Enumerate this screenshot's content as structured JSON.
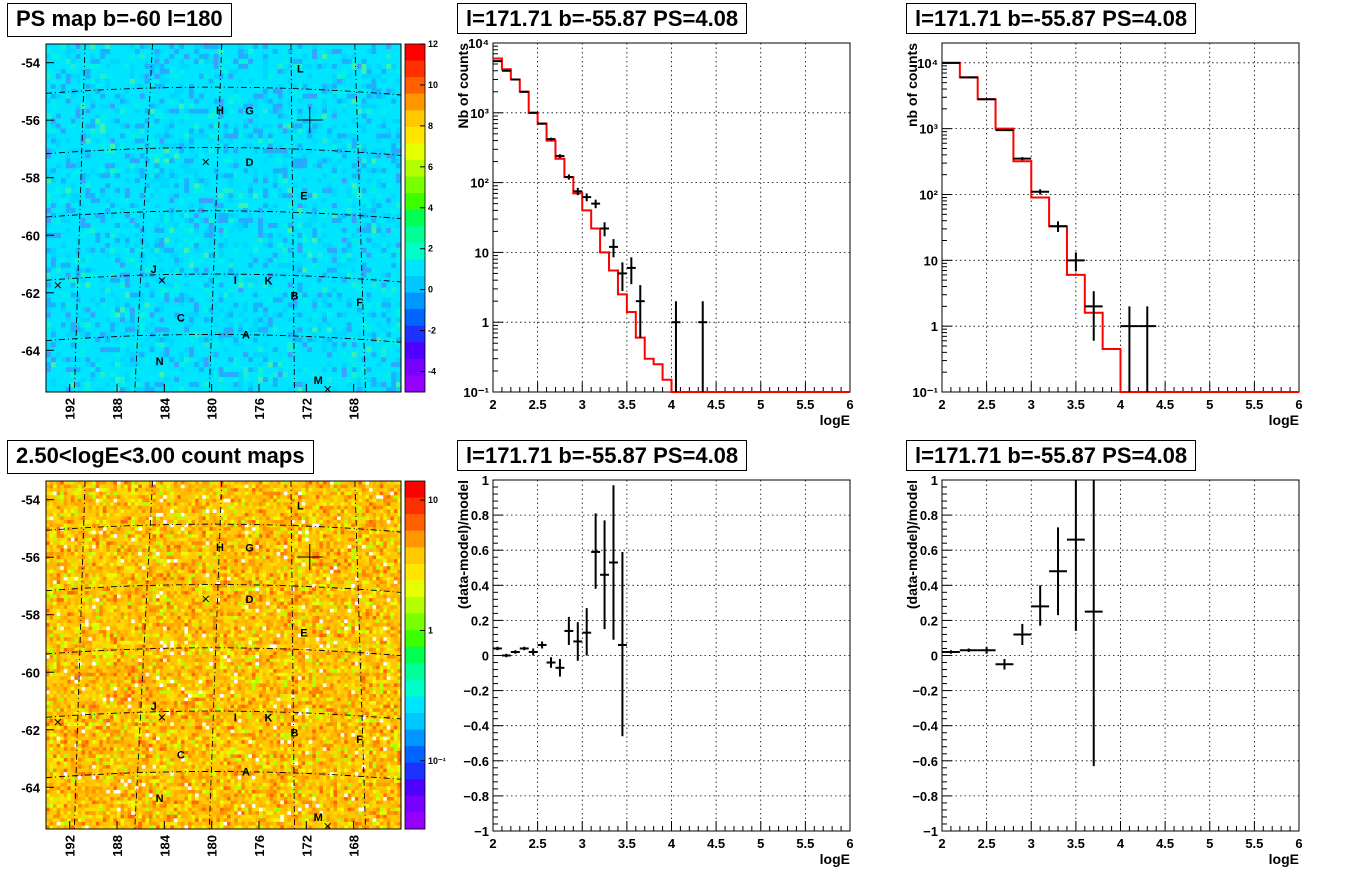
{
  "colors": {
    "data_marker": "#000000",
    "model_line": "#ff0000",
    "grid": "#000000",
    "frame": "#000000",
    "background": "#ffffff"
  },
  "maps": [
    {
      "title": "PS map b=-60 l=180",
      "yticks": [
        "-54",
        "-56",
        "-58",
        "-60",
        "-62",
        "-64"
      ],
      "xticks": [
        "192",
        "188",
        "184",
        "180",
        "176",
        "172",
        "168"
      ],
      "colorbar": {
        "labels": [
          "12",
          "10",
          "8",
          "6",
          "4",
          "2",
          "0",
          "-2",
          "-4"
        ],
        "scale": "linear",
        "range": [
          -5,
          12
        ]
      },
      "dominant_color": "cyan",
      "sources": [
        {
          "name": "L",
          "lon": 172.5,
          "lat": -54.1
        },
        {
          "name": "H",
          "lon": 179.3,
          "lat": -55.6
        },
        {
          "name": "G",
          "lon": 176.8,
          "lat": -55.6
        },
        {
          "name": "D",
          "lon": 176.8,
          "lat": -57.4
        },
        {
          "name": "E",
          "lon": 172.2,
          "lat": -58.5
        },
        {
          "name": "J",
          "lon": 184.9,
          "lat": -61.1
        },
        {
          "name": "I",
          "lon": 178.0,
          "lat": -61.5
        },
        {
          "name": "K",
          "lon": 175.2,
          "lat": -61.5
        },
        {
          "name": "B",
          "lon": 173.0,
          "lat": -62.0
        },
        {
          "name": "F",
          "lon": 167.5,
          "lat": -62.1
        },
        {
          "name": "C",
          "lon": 182.6,
          "lat": -62.8
        },
        {
          "name": "A",
          "lon": 177.1,
          "lat": -63.4
        },
        {
          "name": "N",
          "lon": 184.4,
          "lat": -64.3
        },
        {
          "name": "M",
          "lon": 171.0,
          "lat": -64.9
        }
      ]
    },
    {
      "title": "2.50<logE<3.00 count maps",
      "yticks": [
        "-54",
        "-56",
        "-58",
        "-60",
        "-62",
        "-64"
      ],
      "xticks": [
        "192",
        "188",
        "184",
        "180",
        "176",
        "172",
        "168"
      ],
      "colorbar": {
        "labels": [
          "10",
          "1",
          "10⁻¹"
        ],
        "scale": "log",
        "range": [
          0.03,
          14
        ]
      },
      "dominant_color": "orange-yellow",
      "sources": [
        {
          "name": "L",
          "lon": 172.5,
          "lat": -54.1
        },
        {
          "name": "H",
          "lon": 179.3,
          "lat": -55.6
        },
        {
          "name": "G",
          "lon": 176.8,
          "lat": -55.6
        },
        {
          "name": "D",
          "lon": 176.8,
          "lat": -57.4
        },
        {
          "name": "E",
          "lon": 172.2,
          "lat": -58.5
        },
        {
          "name": "J",
          "lon": 184.9,
          "lat": -61.1
        },
        {
          "name": "I",
          "lon": 178.0,
          "lat": -61.5
        },
        {
          "name": "K",
          "lon": 175.2,
          "lat": -61.5
        },
        {
          "name": "B",
          "lon": 173.0,
          "lat": -62.0
        },
        {
          "name": "F",
          "lon": 167.5,
          "lat": -62.1
        },
        {
          "name": "C",
          "lon": 182.6,
          "lat": -62.8
        },
        {
          "name": "A",
          "lon": 177.1,
          "lat": -63.4
        },
        {
          "name": "N",
          "lon": 184.4,
          "lat": -64.3
        },
        {
          "name": "M",
          "lon": 171.0,
          "lat": -64.9
        }
      ]
    }
  ],
  "chart_data": [
    {
      "type": "line",
      "title": "l=171.71 b=-55.87 PS=4.08",
      "xlabel": "logE",
      "ylabel": "Nb of counts",
      "yscale": "log",
      "xlim": [
        2,
        6
      ],
      "ylim": [
        0.1,
        10000
      ],
      "grid": true,
      "xticks": [
        "2",
        "2.5",
        "3",
        "3.5",
        "4",
        "4.5",
        "5",
        "5.5",
        "6"
      ],
      "yticks": [
        {
          "v": 0.1,
          "t": "10⁻¹"
        },
        {
          "v": 1,
          "t": "1"
        },
        {
          "v": 10,
          "t": "10"
        },
        {
          "v": 100,
          "t": "10²"
        },
        {
          "v": 1000,
          "t": "10³"
        },
        {
          "v": 10000,
          "t": "10⁴"
        }
      ],
      "model_step": {
        "edges": [
          2.0,
          2.1,
          2.2,
          2.3,
          2.4,
          2.5,
          2.6,
          2.7,
          2.8,
          2.9,
          3.0,
          3.1,
          3.2,
          3.3,
          3.4,
          3.5,
          3.6,
          3.7,
          3.8,
          3.9,
          4.0,
          4.1,
          6.0
        ],
        "values": [
          6000,
          4200,
          3000,
          2000,
          1000,
          700,
          400,
          220,
          120,
          70,
          40,
          22,
          10,
          5.5,
          2.5,
          1.4,
          0.6,
          0.3,
          0.25,
          0.15,
          0.1,
          0.1
        ]
      },
      "data_points": [
        {
          "x": 2.05,
          "y": 5500,
          "xerr": 0.05,
          "ylo": 5400,
          "yhi": 5600
        },
        {
          "x": 2.15,
          "y": 4000,
          "xerr": 0.05,
          "ylo": 3900,
          "yhi": 4100
        },
        {
          "x": 2.25,
          "y": 3000,
          "xerr": 0.05,
          "ylo": 2900,
          "yhi": 3100
        },
        {
          "x": 2.35,
          "y": 2000,
          "xerr": 0.05,
          "ylo": 1950,
          "yhi": 2050
        },
        {
          "x": 2.45,
          "y": 1000,
          "xerr": 0.05,
          "ylo": 970,
          "yhi": 1030
        },
        {
          "x": 2.55,
          "y": 700,
          "xerr": 0.05,
          "ylo": 675,
          "yhi": 725
        },
        {
          "x": 2.65,
          "y": 420,
          "xerr": 0.05,
          "ylo": 400,
          "yhi": 440
        },
        {
          "x": 2.75,
          "y": 240,
          "xerr": 0.05,
          "ylo": 225,
          "yhi": 255
        },
        {
          "x": 2.85,
          "y": 120,
          "xerr": 0.05,
          "ylo": 110,
          "yhi": 131
        },
        {
          "x": 2.95,
          "y": 75,
          "xerr": 0.05,
          "ylo": 66,
          "yhi": 84
        },
        {
          "x": 3.05,
          "y": 62,
          "xerr": 0.05,
          "ylo": 54,
          "yhi": 70
        },
        {
          "x": 3.15,
          "y": 50,
          "xerr": 0.05,
          "ylo": 43,
          "yhi": 57
        },
        {
          "x": 3.25,
          "y": 22,
          "xerr": 0.05,
          "ylo": 17,
          "yhi": 27
        },
        {
          "x": 3.35,
          "y": 12,
          "xerr": 0.05,
          "ylo": 8.5,
          "yhi": 15.5
        },
        {
          "x": 3.45,
          "y": 5,
          "xerr": 0.05,
          "ylo": 2.8,
          "yhi": 7.2
        },
        {
          "x": 3.55,
          "y": 6,
          "xerr": 0.05,
          "ylo": 3.5,
          "yhi": 8.5
        },
        {
          "x": 3.65,
          "y": 2,
          "xerr": 0.05,
          "ylo": 0.6,
          "yhi": 3.4
        },
        {
          "x": 4.05,
          "y": 1,
          "xerr": 0.05,
          "ylo": 0.1,
          "yhi": 2
        },
        {
          "x": 4.35,
          "y": 1,
          "xerr": 0.05,
          "ylo": 0.1,
          "yhi": 2
        }
      ]
    },
    {
      "type": "line",
      "title": "l=171.71 b=-55.87 PS=4.08",
      "xlabel": "logE",
      "ylabel": "nb of counts",
      "yscale": "log",
      "xlim": [
        2,
        6
      ],
      "ylim": [
        0.1,
        20000
      ],
      "grid": true,
      "xticks": [
        "2",
        "2.5",
        "3",
        "3.5",
        "4",
        "4.5",
        "5",
        "5.5",
        "6"
      ],
      "yticks": [
        {
          "v": 0.1,
          "t": "10⁻¹"
        },
        {
          "v": 1,
          "t": "1"
        },
        {
          "v": 10,
          "t": "10"
        },
        {
          "v": 100,
          "t": "10²"
        },
        {
          "v": 1000,
          "t": "10³"
        },
        {
          "v": 10000,
          "t": "10⁴"
        }
      ],
      "model_step": {
        "edges": [
          2.0,
          2.2,
          2.4,
          2.6,
          2.8,
          3.0,
          3.2,
          3.4,
          3.6,
          3.8,
          4.0,
          4.2,
          6.0
        ],
        "values": [
          10000,
          6000,
          2800,
          1000,
          320,
          90,
          33,
          6,
          1.6,
          0.45,
          0.1,
          0.1
        ]
      },
      "data_points": [
        {
          "x": 2.1,
          "y": 10000,
          "xerr": 0.1,
          "ylo": 9900,
          "yhi": 10100
        },
        {
          "x": 2.3,
          "y": 6000,
          "xerr": 0.1,
          "ylo": 5900,
          "yhi": 6100
        },
        {
          "x": 2.5,
          "y": 2800,
          "xerr": 0.1,
          "ylo": 2750,
          "yhi": 2850
        },
        {
          "x": 2.7,
          "y": 950,
          "xerr": 0.1,
          "ylo": 920,
          "yhi": 980
        },
        {
          "x": 2.9,
          "y": 350,
          "xerr": 0.1,
          "ylo": 330,
          "yhi": 370
        },
        {
          "x": 3.1,
          "y": 110,
          "xerr": 0.1,
          "ylo": 100,
          "yhi": 120
        },
        {
          "x": 3.3,
          "y": 33,
          "xerr": 0.1,
          "ylo": 27,
          "yhi": 39
        },
        {
          "x": 3.5,
          "y": 10,
          "xerr": 0.1,
          "ylo": 6.8,
          "yhi": 13.2
        },
        {
          "x": 3.7,
          "y": 2,
          "xerr": 0.1,
          "ylo": 0.6,
          "yhi": 3.4
        },
        {
          "x": 4.1,
          "y": 1,
          "xerr": 0.1,
          "ylo": 0.1,
          "yhi": 2
        },
        {
          "x": 4.3,
          "y": 1,
          "xerr": 0.1,
          "ylo": 0.1,
          "yhi": 2
        }
      ]
    },
    {
      "type": "scatter",
      "title": "l=171.71 b=-55.87 PS=4.08",
      "xlabel": "logE",
      "ylabel": "(data-model)/model",
      "yscale": "linear",
      "xlim": [
        2,
        6
      ],
      "ylim": [
        -1,
        1
      ],
      "grid": true,
      "xticks": [
        "2",
        "2.5",
        "3",
        "3.5",
        "4",
        "4.5",
        "5",
        "5.5",
        "6"
      ],
      "yticks": [
        {
          "v": -1,
          "t": "−1"
        },
        {
          "v": -0.8,
          "t": "−0.8"
        },
        {
          "v": -0.6,
          "t": "−0.6"
        },
        {
          "v": -0.4,
          "t": "−0.4"
        },
        {
          "v": -0.2,
          "t": "−0.2"
        },
        {
          "v": 0,
          "t": "0"
        },
        {
          "v": 0.2,
          "t": "0.2"
        },
        {
          "v": 0.4,
          "t": "0.4"
        },
        {
          "v": 0.6,
          "t": "0.6"
        },
        {
          "v": 0.8,
          "t": "0.8"
        },
        {
          "v": 1,
          "t": "1"
        }
      ],
      "data_points": [
        {
          "x": 2.05,
          "y": 0.04,
          "xerr": 0.05,
          "ylo": 0.03,
          "yhi": 0.05
        },
        {
          "x": 2.15,
          "y": 0.0,
          "xerr": 0.05,
          "ylo": -0.01,
          "yhi": 0.01
        },
        {
          "x": 2.25,
          "y": 0.02,
          "xerr": 0.05,
          "ylo": 0.01,
          "yhi": 0.03
        },
        {
          "x": 2.35,
          "y": 0.04,
          "xerr": 0.05,
          "ylo": 0.03,
          "yhi": 0.05
        },
        {
          "x": 2.45,
          "y": 0.02,
          "xerr": 0.05,
          "ylo": 0.0,
          "yhi": 0.04
        },
        {
          "x": 2.55,
          "y": 0.06,
          "xerr": 0.05,
          "ylo": 0.04,
          "yhi": 0.08
        },
        {
          "x": 2.65,
          "y": -0.04,
          "xerr": 0.05,
          "ylo": -0.07,
          "yhi": -0.01
        },
        {
          "x": 2.75,
          "y": -0.07,
          "xerr": 0.05,
          "ylo": -0.12,
          "yhi": -0.02
        },
        {
          "x": 2.85,
          "y": 0.14,
          "xerr": 0.05,
          "ylo": 0.06,
          "yhi": 0.22
        },
        {
          "x": 2.95,
          "y": 0.08,
          "xerr": 0.05,
          "ylo": -0.03,
          "yhi": 0.19
        },
        {
          "x": 3.05,
          "y": 0.13,
          "xerr": 0.05,
          "ylo": 0.0,
          "yhi": 0.27
        },
        {
          "x": 3.15,
          "y": 0.59,
          "xerr": 0.05,
          "ylo": 0.38,
          "yhi": 0.81
        },
        {
          "x": 3.25,
          "y": 0.46,
          "xerr": 0.05,
          "ylo": 0.15,
          "yhi": 0.77
        },
        {
          "x": 3.35,
          "y": 0.53,
          "xerr": 0.05,
          "ylo": 0.09,
          "yhi": 0.97
        },
        {
          "x": 3.45,
          "y": 0.06,
          "xerr": 0.05,
          "ylo": -0.46,
          "yhi": 0.59
        }
      ]
    },
    {
      "type": "scatter",
      "title": "l=171.71 b=-55.87 PS=4.08",
      "xlabel": "logE",
      "ylabel": "(data-model)/model",
      "yscale": "linear",
      "xlim": [
        2,
        6
      ],
      "ylim": [
        -1,
        1
      ],
      "grid": true,
      "xticks": [
        "2",
        "2.5",
        "3",
        "3.5",
        "4",
        "4.5",
        "5",
        "5.5",
        "6"
      ],
      "yticks": [
        {
          "v": -1,
          "t": "−1"
        },
        {
          "v": -0.8,
          "t": "−0.8"
        },
        {
          "v": -0.6,
          "t": "−0.6"
        },
        {
          "v": -0.4,
          "t": "−0.4"
        },
        {
          "v": -0.2,
          "t": "−0.2"
        },
        {
          "v": 0,
          "t": "0"
        },
        {
          "v": 0.2,
          "t": "0.2"
        },
        {
          "v": 0.4,
          "t": "0.4"
        },
        {
          "v": 0.6,
          "t": "0.6"
        },
        {
          "v": 0.8,
          "t": "0.8"
        },
        {
          "v": 1,
          "t": "1"
        }
      ],
      "data_points": [
        {
          "x": 2.1,
          "y": 0.02,
          "xerr": 0.1,
          "ylo": 0.01,
          "yhi": 0.03
        },
        {
          "x": 2.3,
          "y": 0.03,
          "xerr": 0.1,
          "ylo": 0.02,
          "yhi": 0.04
        },
        {
          "x": 2.5,
          "y": 0.03,
          "xerr": 0.1,
          "ylo": 0.01,
          "yhi": 0.05
        },
        {
          "x": 2.7,
          "y": -0.05,
          "xerr": 0.1,
          "ylo": -0.08,
          "yhi": -0.02
        },
        {
          "x": 2.9,
          "y": 0.12,
          "xerr": 0.1,
          "ylo": 0.06,
          "yhi": 0.18
        },
        {
          "x": 3.1,
          "y": 0.28,
          "xerr": 0.1,
          "ylo": 0.17,
          "yhi": 0.4
        },
        {
          "x": 3.3,
          "y": 0.48,
          "xerr": 0.1,
          "ylo": 0.23,
          "yhi": 0.73
        },
        {
          "x": 3.5,
          "y": 0.66,
          "xerr": 0.1,
          "ylo": 0.14,
          "yhi": 1.0
        },
        {
          "x": 3.7,
          "y": 0.25,
          "xerr": 0.1,
          "ylo": -0.63,
          "yhi": 1.0
        }
      ]
    }
  ]
}
